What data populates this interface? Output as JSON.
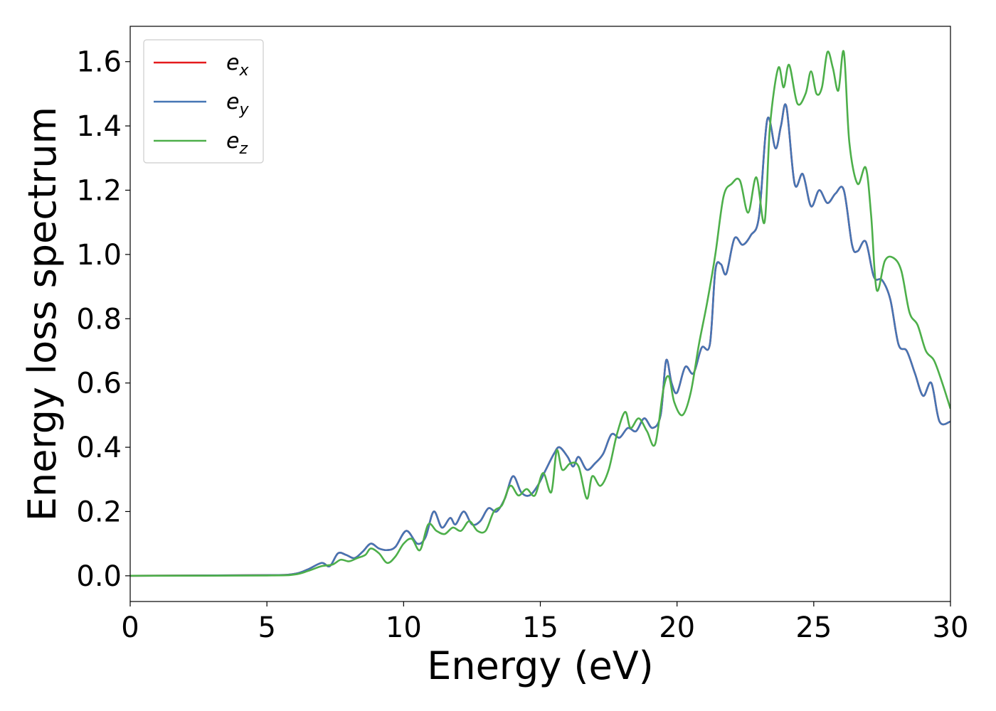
{
  "chart_data": {
    "type": "line",
    "xlabel": "Energy (eV)",
    "ylabel": "Energy loss spectrum",
    "xlim": [
      0,
      30
    ],
    "ylim": [
      -0.08,
      1.71
    ],
    "xticks": [
      0,
      5,
      10,
      15,
      20,
      25,
      30
    ],
    "xtick_labels": [
      "0",
      "5",
      "10",
      "15",
      "20",
      "25",
      "30"
    ],
    "yticks": [
      0.0,
      0.2,
      0.4,
      0.6,
      0.8,
      1.0,
      1.2,
      1.4,
      1.6
    ],
    "ytick_labels": [
      "0.0",
      "0.2",
      "0.4",
      "0.6",
      "0.8",
      "1.0",
      "1.2",
      "1.4",
      "1.6"
    ],
    "grid": false,
    "legend_position": "top-left",
    "series": [
      {
        "name": "e_x",
        "label_main": "e",
        "label_sub": "x",
        "color": "#e41a1c",
        "x": [
          0,
          5,
          6,
          6.5,
          7,
          7.3,
          7.6,
          7.9,
          8.2,
          8.5,
          8.8,
          9.1,
          9.4,
          9.7,
          10.1,
          10.5,
          10.8,
          11.1,
          11.4,
          11.7,
          11.9,
          12.2,
          12.5,
          12.8,
          13.1,
          13.4,
          13.7,
          14.0,
          14.3,
          14.6,
          14.9,
          15.2,
          15.5,
          15.7,
          16.0,
          16.2,
          16.4,
          16.7,
          17.0,
          17.3,
          17.6,
          17.9,
          18.2,
          18.5,
          18.8,
          19.1,
          19.4,
          19.6,
          19.8,
          20.0,
          20.3,
          20.6,
          20.9,
          21.2,
          21.4,
          21.6,
          21.8,
          22.1,
          22.4,
          22.7,
          23.0,
          23.3,
          23.6,
          23.8,
          24.0,
          24.3,
          24.6,
          24.9,
          25.2,
          25.5,
          25.8,
          26.1,
          26.4,
          26.6,
          26.9,
          27.2,
          27.5,
          27.8,
          28.1,
          28.4,
          28.7,
          29.0,
          29.3,
          29.6,
          30.0
        ],
        "y": [
          0.0,
          0.002,
          0.006,
          0.02,
          0.04,
          0.03,
          0.07,
          0.065,
          0.055,
          0.075,
          0.1,
          0.085,
          0.08,
          0.09,
          0.14,
          0.1,
          0.12,
          0.2,
          0.15,
          0.18,
          0.16,
          0.2,
          0.16,
          0.17,
          0.21,
          0.2,
          0.24,
          0.31,
          0.26,
          0.25,
          0.28,
          0.33,
          0.38,
          0.4,
          0.37,
          0.34,
          0.37,
          0.33,
          0.35,
          0.38,
          0.44,
          0.43,
          0.46,
          0.45,
          0.49,
          0.46,
          0.5,
          0.67,
          0.6,
          0.57,
          0.65,
          0.63,
          0.71,
          0.72,
          0.95,
          0.97,
          0.94,
          1.05,
          1.03,
          1.06,
          1.12,
          1.42,
          1.33,
          1.4,
          1.46,
          1.22,
          1.25,
          1.15,
          1.2,
          1.16,
          1.19,
          1.2,
          1.03,
          1.01,
          1.04,
          0.93,
          0.92,
          0.86,
          0.72,
          0.7,
          0.63,
          0.56,
          0.6,
          0.48,
          0.48
        ]
      },
      {
        "name": "e_y",
        "label_main": "e",
        "label_sub": "y",
        "color": "#4575b4",
        "x": [
          0,
          5,
          6,
          6.5,
          7,
          7.3,
          7.6,
          7.9,
          8.2,
          8.5,
          8.8,
          9.1,
          9.4,
          9.7,
          10.1,
          10.5,
          10.8,
          11.1,
          11.4,
          11.7,
          11.9,
          12.2,
          12.5,
          12.8,
          13.1,
          13.4,
          13.7,
          14.0,
          14.3,
          14.6,
          14.9,
          15.2,
          15.5,
          15.7,
          16.0,
          16.2,
          16.4,
          16.7,
          17.0,
          17.3,
          17.6,
          17.9,
          18.2,
          18.5,
          18.8,
          19.1,
          19.4,
          19.6,
          19.8,
          20.0,
          20.3,
          20.6,
          20.9,
          21.2,
          21.4,
          21.6,
          21.8,
          22.1,
          22.4,
          22.7,
          23.0,
          23.3,
          23.6,
          23.8,
          24.0,
          24.3,
          24.6,
          24.9,
          25.2,
          25.5,
          25.8,
          26.1,
          26.4,
          26.6,
          26.9,
          27.2,
          27.5,
          27.8,
          28.1,
          28.4,
          28.7,
          29.0,
          29.3,
          29.6,
          30.0
        ],
        "y": [
          0.0,
          0.002,
          0.006,
          0.02,
          0.04,
          0.03,
          0.07,
          0.065,
          0.055,
          0.075,
          0.1,
          0.085,
          0.08,
          0.09,
          0.14,
          0.1,
          0.12,
          0.2,
          0.15,
          0.18,
          0.16,
          0.2,
          0.16,
          0.17,
          0.21,
          0.2,
          0.24,
          0.31,
          0.26,
          0.25,
          0.28,
          0.33,
          0.38,
          0.4,
          0.37,
          0.34,
          0.37,
          0.33,
          0.35,
          0.38,
          0.44,
          0.43,
          0.46,
          0.45,
          0.49,
          0.46,
          0.5,
          0.67,
          0.6,
          0.57,
          0.65,
          0.63,
          0.71,
          0.72,
          0.95,
          0.97,
          0.94,
          1.05,
          1.03,
          1.06,
          1.12,
          1.42,
          1.33,
          1.4,
          1.46,
          1.22,
          1.25,
          1.15,
          1.2,
          1.16,
          1.19,
          1.2,
          1.03,
          1.01,
          1.04,
          0.93,
          0.92,
          0.86,
          0.72,
          0.7,
          0.63,
          0.56,
          0.6,
          0.48,
          0.48
        ]
      },
      {
        "name": "e_z",
        "label_main": "e",
        "label_sub": "z",
        "color": "#4daf4a",
        "x": [
          0,
          5,
          6,
          6.5,
          7,
          7.4,
          7.7,
          8.0,
          8.3,
          8.6,
          8.8,
          9.1,
          9.4,
          9.7,
          10.0,
          10.3,
          10.6,
          10.9,
          11.2,
          11.5,
          11.8,
          12.1,
          12.4,
          12.7,
          13.0,
          13.3,
          13.6,
          13.9,
          14.2,
          14.5,
          14.8,
          15.1,
          15.4,
          15.6,
          15.8,
          16.1,
          16.4,
          16.7,
          16.9,
          17.2,
          17.5,
          17.8,
          18.1,
          18.3,
          18.6,
          18.9,
          19.2,
          19.5,
          19.7,
          19.9,
          20.2,
          20.5,
          20.8,
          21.1,
          21.4,
          21.7,
          22.0,
          22.3,
          22.6,
          22.9,
          23.2,
          23.4,
          23.7,
          23.9,
          24.1,
          24.4,
          24.7,
          24.9,
          25.1,
          25.3,
          25.5,
          25.7,
          25.9,
          26.1,
          26.3,
          26.6,
          26.9,
          27.1,
          27.3,
          27.6,
          27.9,
          28.2,
          28.5,
          28.8,
          29.1,
          29.4,
          29.7,
          30.0
        ],
        "y": [
          0.0,
          0.001,
          0.004,
          0.015,
          0.03,
          0.035,
          0.05,
          0.045,
          0.055,
          0.065,
          0.085,
          0.07,
          0.04,
          0.06,
          0.1,
          0.115,
          0.08,
          0.16,
          0.14,
          0.13,
          0.15,
          0.14,
          0.17,
          0.14,
          0.14,
          0.2,
          0.22,
          0.28,
          0.25,
          0.27,
          0.25,
          0.32,
          0.26,
          0.39,
          0.33,
          0.35,
          0.34,
          0.24,
          0.31,
          0.28,
          0.33,
          0.44,
          0.51,
          0.46,
          0.49,
          0.45,
          0.41,
          0.58,
          0.62,
          0.54,
          0.5,
          0.57,
          0.72,
          0.85,
          1.0,
          1.18,
          1.22,
          1.23,
          1.13,
          1.24,
          1.1,
          1.4,
          1.58,
          1.52,
          1.59,
          1.47,
          1.5,
          1.57,
          1.5,
          1.52,
          1.63,
          1.58,
          1.51,
          1.63,
          1.35,
          1.22,
          1.27,
          1.12,
          0.89,
          0.98,
          0.99,
          0.95,
          0.82,
          0.78,
          0.7,
          0.67,
          0.6,
          0.52
        ]
      }
    ]
  }
}
